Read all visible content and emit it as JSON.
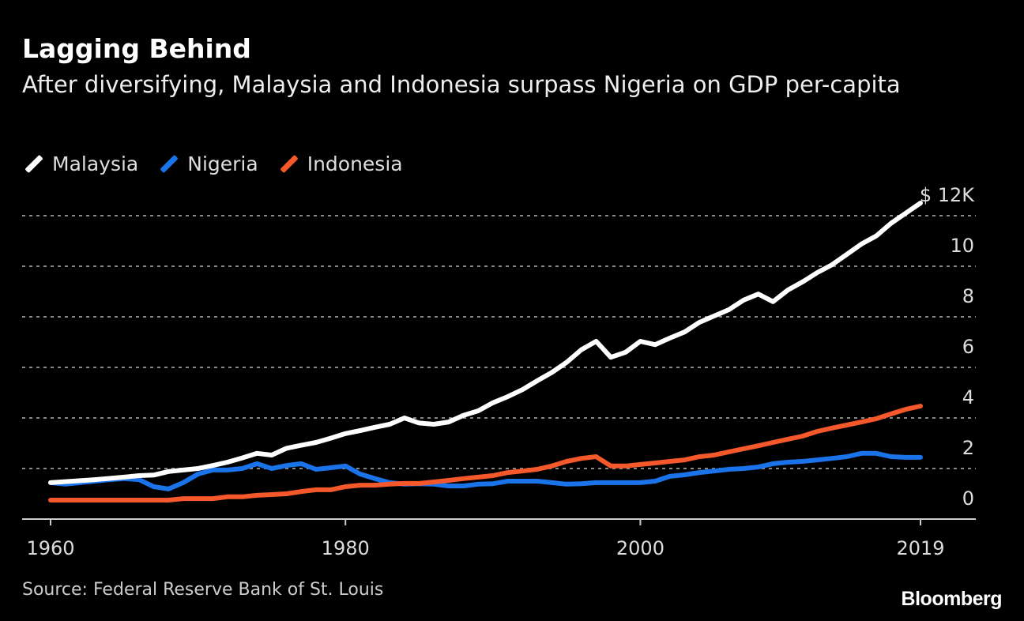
{
  "chart_data": {
    "type": "line",
    "title": "Lagging Behind",
    "subtitle": "After diversifying, Malaysia and Indonesia surpass Nigeria on GDP per-capita",
    "xlabel": "",
    "ylabel": "",
    "source": "Source: Federal Reserve Bank of St. Louis",
    "logo": "Bloomberg",
    "legend_position": "top-left",
    "grid": true,
    "xlim": [
      1960,
      2019
    ],
    "ylim": [
      0,
      12
    ],
    "x_ticks": [
      1960,
      1980,
      2000,
      2019
    ],
    "x_tick_labels": [
      "1960",
      "1980",
      "2000",
      "2019"
    ],
    "y_ticks": [
      0,
      2,
      4,
      6,
      8,
      10,
      12
    ],
    "y_tick_labels": [
      "0",
      "2",
      "4",
      "6",
      "8",
      "10",
      "$ 12K"
    ],
    "x": [
      1960,
      1961,
      1962,
      1963,
      1964,
      1965,
      1966,
      1967,
      1968,
      1969,
      1970,
      1971,
      1972,
      1973,
      1974,
      1975,
      1976,
      1977,
      1978,
      1979,
      1980,
      1981,
      1982,
      1983,
      1984,
      1985,
      1986,
      1987,
      1988,
      1989,
      1990,
      1991,
      1992,
      1993,
      1994,
      1995,
      1996,
      1997,
      1998,
      1999,
      2000,
      2001,
      2002,
      2003,
      2004,
      2005,
      2006,
      2007,
      2008,
      2009,
      2010,
      2011,
      2012,
      2013,
      2014,
      2015,
      2016,
      2017,
      2018,
      2019
    ],
    "series": [
      {
        "name": "Malaysia",
        "color": "#ffffff",
        "values": [
          1.44,
          1.48,
          1.52,
          1.56,
          1.61,
          1.66,
          1.72,
          1.74,
          1.88,
          1.94,
          2.0,
          2.12,
          2.25,
          2.42,
          2.6,
          2.53,
          2.8,
          2.92,
          3.03,
          3.2,
          3.38,
          3.5,
          3.63,
          3.75,
          4.0,
          3.8,
          3.75,
          3.84,
          4.1,
          4.28,
          4.6,
          4.84,
          5.12,
          5.47,
          5.8,
          6.2,
          6.7,
          7.03,
          6.4,
          6.6,
          7.03,
          6.9,
          7.16,
          7.4,
          7.78,
          8.03,
          8.28,
          8.66,
          8.9,
          8.6,
          9.06,
          9.38,
          9.75,
          10.06,
          10.47,
          10.88,
          11.2,
          11.7,
          12.1,
          12.5
        ]
      },
      {
        "name": "Nigeria",
        "color": "#1a73e8",
        "values": [
          1.44,
          1.38,
          1.44,
          1.5,
          1.56,
          1.6,
          1.56,
          1.28,
          1.19,
          1.44,
          1.78,
          1.94,
          1.94,
          2.0,
          2.19,
          2.0,
          2.12,
          2.19,
          1.97,
          2.03,
          2.1,
          1.78,
          1.6,
          1.44,
          1.38,
          1.4,
          1.38,
          1.31,
          1.31,
          1.38,
          1.4,
          1.5,
          1.5,
          1.5,
          1.44,
          1.38,
          1.4,
          1.44,
          1.44,
          1.44,
          1.44,
          1.5,
          1.69,
          1.75,
          1.84,
          1.9,
          1.97,
          2.0,
          2.06,
          2.19,
          2.25,
          2.28,
          2.34,
          2.4,
          2.47,
          2.6,
          2.6,
          2.47,
          2.44,
          2.44
        ]
      },
      {
        "name": "Indonesia",
        "color": "#f5582a",
        "values": [
          0.75,
          0.75,
          0.75,
          0.75,
          0.75,
          0.75,
          0.75,
          0.75,
          0.75,
          0.81,
          0.81,
          0.81,
          0.88,
          0.88,
          0.94,
          0.97,
          1.0,
          1.09,
          1.16,
          1.16,
          1.28,
          1.34,
          1.34,
          1.38,
          1.41,
          1.41,
          1.47,
          1.53,
          1.6,
          1.66,
          1.72,
          1.84,
          1.9,
          1.97,
          2.1,
          2.28,
          2.4,
          2.47,
          2.1,
          2.1,
          2.16,
          2.22,
          2.28,
          2.34,
          2.47,
          2.53,
          2.66,
          2.78,
          2.9,
          3.03,
          3.16,
          3.28,
          3.47,
          3.6,
          3.72,
          3.84,
          3.97,
          4.16,
          4.34,
          4.47
        ]
      }
    ]
  }
}
